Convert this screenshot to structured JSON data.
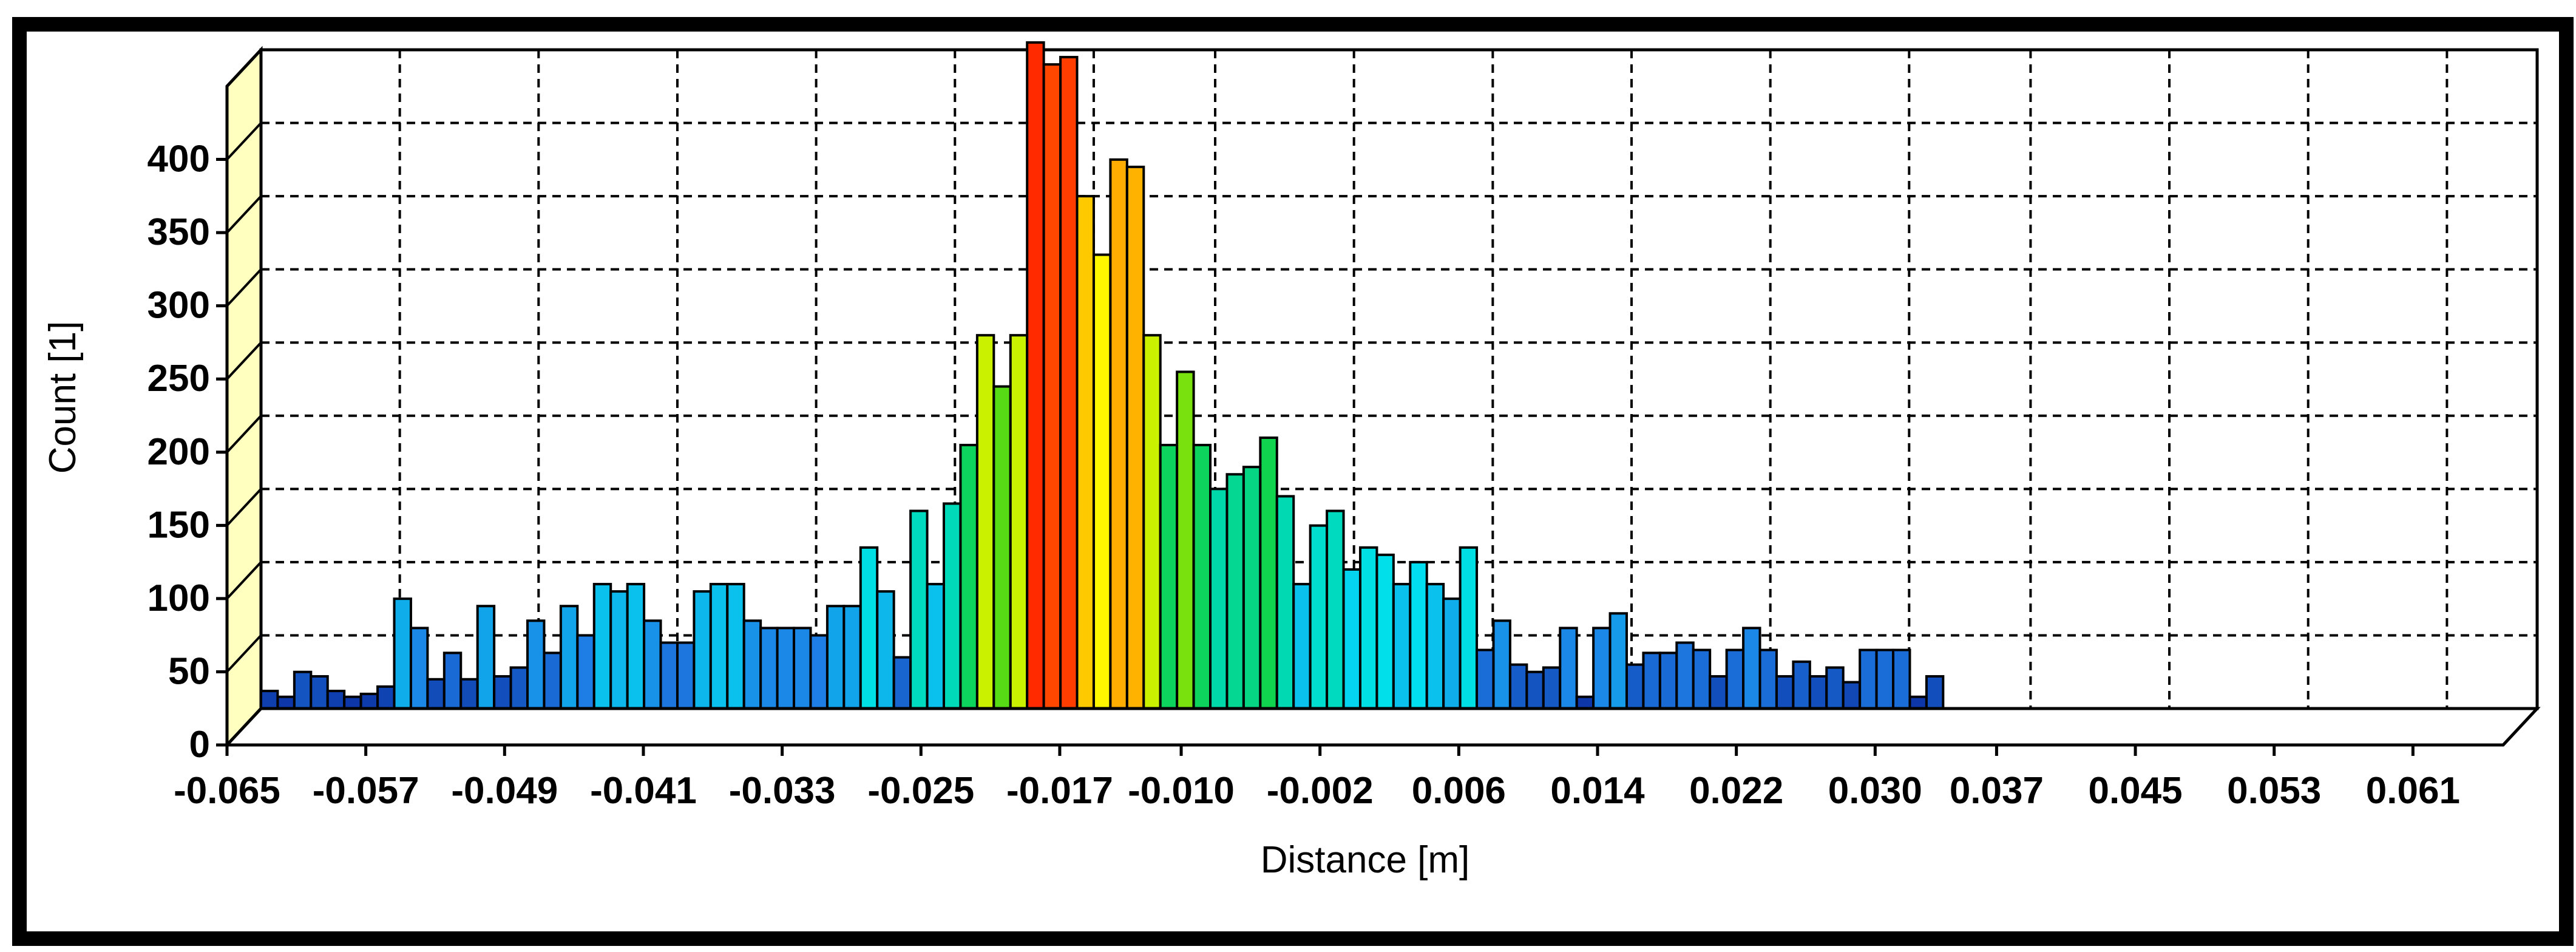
{
  "chart_data": {
    "type": "bar",
    "title": "",
    "xlabel": "Distance [m]",
    "ylabel": "Count [1]",
    "ylim": [
      0,
      450
    ],
    "xlim": [
      -0.065,
      0.0662
    ],
    "bin_width": 0.00096,
    "grid": true,
    "grid_style": "dashed",
    "style": "3d-histogram",
    "colormap": [
      "#0a2a9c",
      "#1e7fe6",
      "#00e0f0",
      "#00d8a8",
      "#18d020",
      "#c8f000",
      "#ffff00",
      "#ffc400",
      "#ff8c00",
      "#ff2a00"
    ],
    "x_ticks": [
      "-0.065",
      "-0.057",
      "-0.049",
      "-0.041",
      "-0.033",
      "-0.025",
      "-0.017",
      "-0.010",
      "-0.002",
      "0.006",
      "0.014",
      "0.022",
      "0.030",
      "0.037",
      "0.045",
      "0.053",
      "0.061"
    ],
    "y_ticks": [
      "0",
      "50",
      "100",
      "150",
      "200",
      "250",
      "300",
      "350",
      "400"
    ],
    "values": [
      12,
      8,
      25,
      22,
      12,
      8,
      10,
      15,
      75,
      55,
      20,
      38,
      20,
      70,
      22,
      28,
      60,
      38,
      70,
      50,
      85,
      80,
      85,
      60,
      45,
      45,
      80,
      85,
      85,
      60,
      55,
      55,
      55,
      50,
      70,
      70,
      110,
      80,
      35,
      135,
      85,
      140,
      180,
      255,
      220,
      255,
      455,
      440,
      445,
      350,
      310,
      375,
      370,
      255,
      180,
      230,
      180,
      150,
      160,
      165,
      185,
      145,
      85,
      125,
      135,
      95,
      110,
      105,
      85,
      100,
      85,
      75,
      110,
      40,
      60,
      30,
      25,
      28,
      55,
      8,
      55,
      65,
      30,
      38,
      38,
      45,
      40,
      22,
      40,
      55,
      40,
      22,
      32,
      22,
      28,
      18,
      40,
      40,
      40,
      8,
      22
    ]
  }
}
